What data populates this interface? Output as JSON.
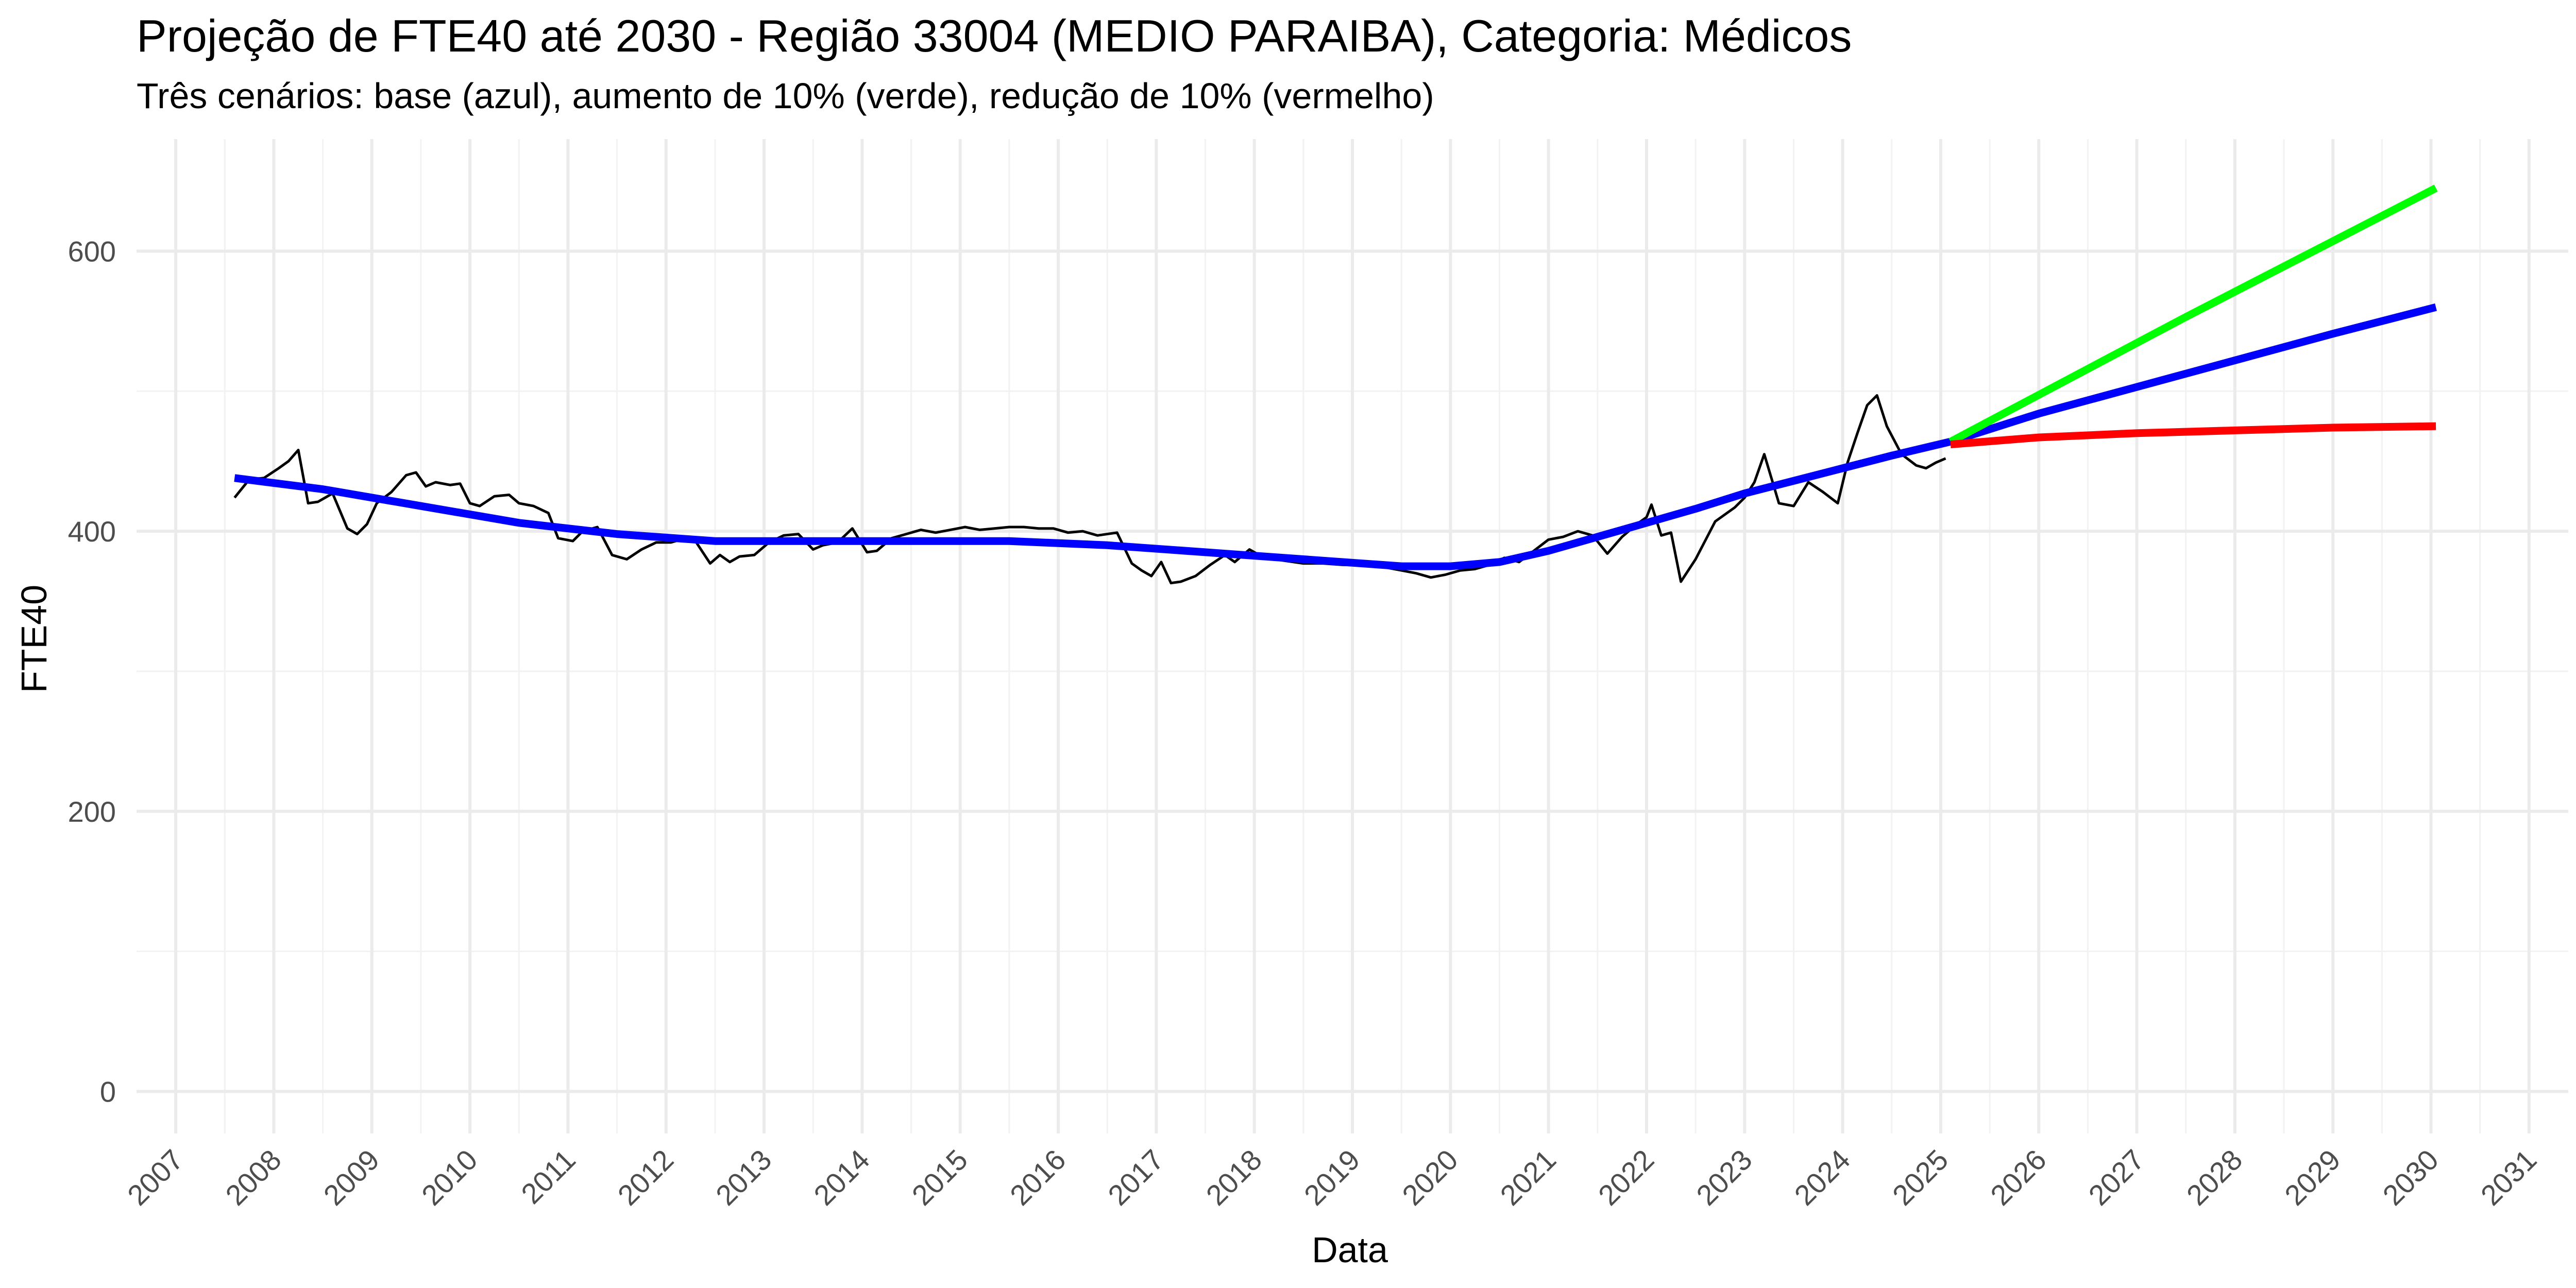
{
  "chart_data": {
    "type": "line",
    "title": "Projeção de FTE40 até 2030 - Região 33004 (MEDIO PARAIBA), Categoria: Médicos",
    "subtitle": "Três cenários: base (azul), aumento de 10% (verde), redução de 10% (vermelho)",
    "xlabel": "Data",
    "ylabel": "FTE40",
    "xlim": [
      2006.6,
      2031.4
    ],
    "ylim": [
      -30,
      680
    ],
    "x_ticks": [
      "2007",
      "2008",
      "2009",
      "2010",
      "2011",
      "2012",
      "2013",
      "2014",
      "2015",
      "2016",
      "2017",
      "2018",
      "2019",
      "2020",
      "2021",
      "2022",
      "2023",
      "2024",
      "2025",
      "2026",
      "2027",
      "2028",
      "2029",
      "2030",
      "2031"
    ],
    "y_ticks": [
      "0",
      "200",
      "400",
      "600"
    ],
    "grid": true,
    "legend": "none",
    "series": [
      {
        "color": "#000000",
        "style": "thin",
        "x": [
          2007.6,
          2007.75,
          2007.9,
          2008.05,
          2008.15,
          2008.25,
          2008.35,
          2008.45,
          2008.6,
          2008.75,
          2008.85,
          2008.95,
          2009.05,
          2009.2,
          2009.35,
          2009.45,
          2009.55,
          2009.65,
          2009.8,
          2009.9,
          2010.0,
          2010.1,
          2010.25,
          2010.4,
          2010.5,
          2010.65,
          2010.8,
          2010.9,
          2011.05,
          2011.15,
          2011.3,
          2011.45,
          2011.6,
          2011.75,
          2011.9,
          2012.05,
          2012.2,
          2012.3,
          2012.45,
          2012.55,
          2012.65,
          2012.75,
          2012.9,
          2013.05,
          2013.2,
          2013.35,
          2013.5,
          2013.6,
          2013.75,
          2013.9,
          2014.05,
          2014.15,
          2014.3,
          2014.45,
          2014.6,
          2014.75,
          2014.9,
          2015.05,
          2015.2,
          2015.35,
          2015.5,
          2015.65,
          2015.8,
          2015.95,
          2016.1,
          2016.25,
          2016.4,
          2016.6,
          2016.75,
          2016.85,
          2016.95,
          2017.05,
          2017.15,
          2017.25,
          2017.4,
          2017.55,
          2017.7,
          2017.8,
          2017.95,
          2018.1,
          2018.3,
          2018.5,
          2018.7,
          2018.9,
          2019.05,
          2019.2,
          2019.35,
          2019.5,
          2019.65,
          2019.8,
          2019.95,
          2020.1,
          2020.25,
          2020.4,
          2020.55,
          2020.7,
          2020.85,
          2021.0,
          2021.15,
          2021.3,
          2021.45,
          2021.6,
          2021.75,
          2021.9,
          2022.0,
          2022.05,
          2022.15,
          2022.25,
          2022.35,
          2022.5,
          2022.7,
          2022.9,
          2023.0,
          2023.1,
          2023.2,
          2023.35,
          2023.5,
          2023.65,
          2023.8,
          2023.95,
          2024.05,
          2024.15,
          2024.25,
          2024.35,
          2024.45,
          2024.6,
          2024.75,
          2024.85,
          2024.95,
          2025.05
        ],
        "y": [
          424,
          437,
          438,
          445,
          450,
          458,
          420,
          421,
          427,
          402,
          398,
          405,
          420,
          428,
          440,
          442,
          432,
          435,
          433,
          434,
          420,
          418,
          425,
          426,
          420,
          418,
          413,
          395,
          393,
          400,
          403,
          383,
          380,
          387,
          392,
          392,
          395,
          393,
          377,
          383,
          378,
          382,
          383,
          392,
          397,
          398,
          387,
          390,
          392,
          402,
          385,
          386,
          395,
          398,
          401,
          399,
          401,
          403,
          401,
          402,
          403,
          403,
          402,
          402,
          399,
          400,
          397,
          399,
          377,
          372,
          368,
          378,
          363,
          364,
          368,
          376,
          383,
          378,
          387,
          381,
          379,
          377,
          377,
          376,
          376,
          375,
          374,
          372,
          370,
          367,
          369,
          372,
          373,
          376,
          381,
          378,
          386,
          394,
          396,
          400,
          397,
          384,
          396,
          405,
          410,
          419,
          397,
          399,
          364,
          380,
          407,
          417,
          424,
          435,
          455,
          420,
          418,
          435,
          428,
          420,
          449,
          470,
          490,
          497,
          475,
          455,
          447,
          445,
          449,
          452
        ]
      },
      {
        "color": "#0000ff",
        "style": "thick",
        "x": [
          2007.6,
          2008.5,
          2009.5,
          2010.5,
          2011.5,
          2012.5,
          2013.5,
          2014.5,
          2015.5,
          2016.5,
          2017.5,
          2018.5,
          2019.5,
          2020.0,
          2020.5,
          2021.0,
          2021.5,
          2022.0,
          2022.5,
          2023.0,
          2023.5,
          2024.0,
          2024.5,
          2025.1,
          2026.0,
          2027.0,
          2028.0,
          2029.0,
          2030.05
        ],
        "y": [
          438,
          430,
          418,
          406,
          398,
          393,
          393,
          393,
          393,
          390,
          385,
          380,
          375,
          375,
          378,
          386,
          396,
          406,
          416,
          427,
          436,
          445,
          454,
          464,
          484,
          503,
          522,
          541,
          560
        ]
      },
      {
        "color": "#00ff00",
        "style": "thick",
        "x": [
          2025.1,
          2027.5,
          2030.05
        ],
        "y": [
          464,
          553,
          645
        ]
      },
      {
        "color": "#ff0000",
        "style": "thick",
        "x": [
          2025.1,
          2026.0,
          2027.0,
          2028.0,
          2029.0,
          2030.05
        ],
        "y": [
          462,
          467,
          470,
          472,
          474,
          475
        ]
      }
    ]
  }
}
